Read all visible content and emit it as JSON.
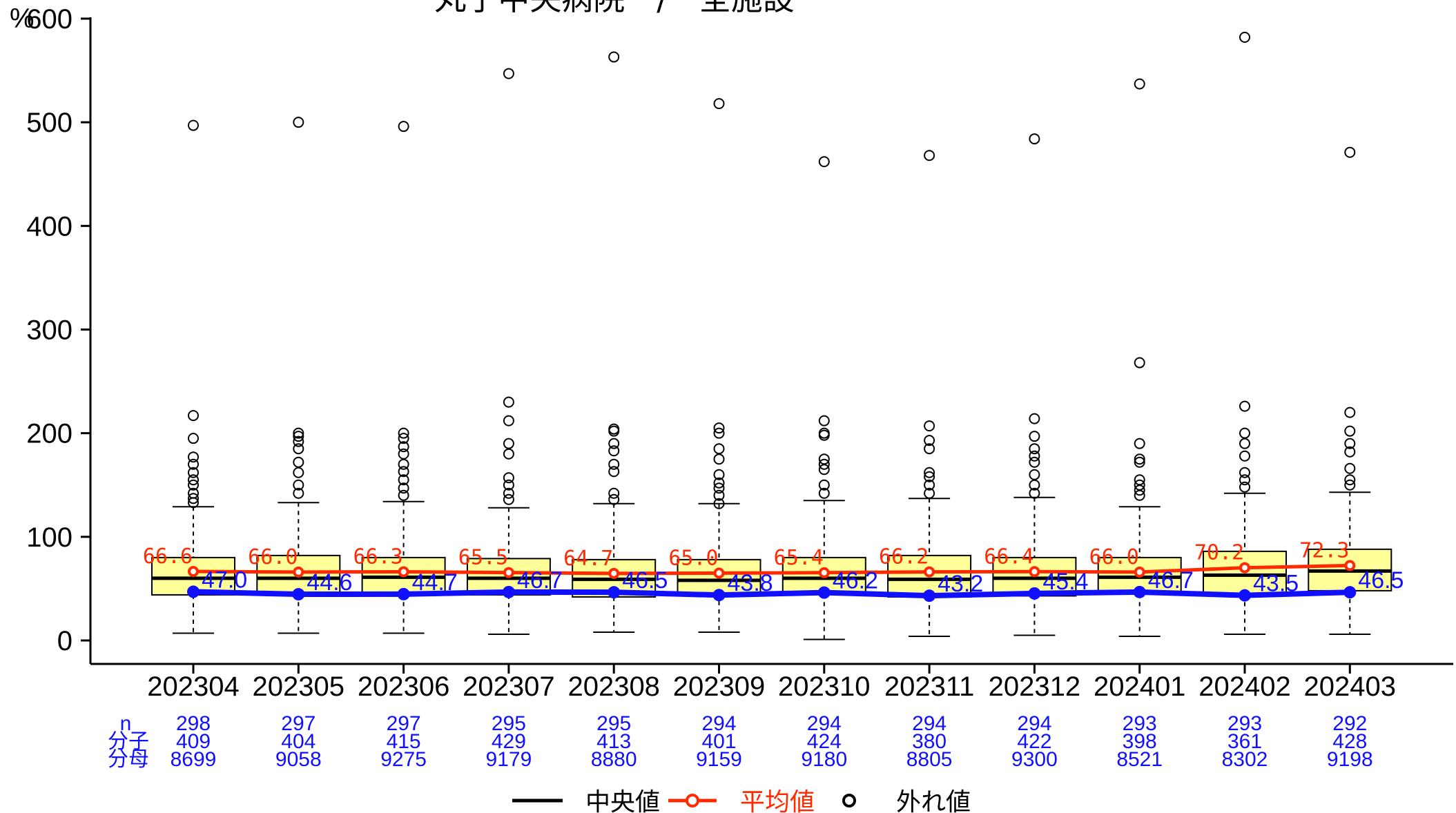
{
  "chart_data": {
    "type": "box",
    "title": "丸子中央病院　/　全施設",
    "y_unit_label": "%",
    "ylim": [
      0,
      600
    ],
    "y_ticks": [
      0,
      100,
      200,
      300,
      400,
      500,
      600
    ],
    "categories": [
      "202304",
      "202305",
      "202306",
      "202307",
      "202308",
      "202309",
      "202310",
      "202311",
      "202312",
      "202401",
      "202402",
      "202403"
    ],
    "boxes": [
      {
        "min": 7,
        "q1": 44,
        "median": 60,
        "q3": 80,
        "whisker_hi": 129,
        "outliers": [
          133,
          137,
          142,
          150,
          155,
          162,
          170,
          177,
          195,
          217,
          497
        ]
      },
      {
        "min": 7,
        "q1": 45,
        "median": 60,
        "q3": 82,
        "whisker_hi": 133,
        "outliers": [
          142,
          150,
          162,
          172,
          185,
          192,
          197,
          200,
          500
        ]
      },
      {
        "min": 7,
        "q1": 45,
        "median": 61,
        "q3": 80,
        "whisker_hi": 134,
        "outliers": [
          140,
          147,
          155,
          163,
          170,
          180,
          187,
          195,
          200,
          496
        ]
      },
      {
        "min": 6,
        "q1": 44,
        "median": 60,
        "q3": 79,
        "whisker_hi": 128,
        "outliers": [
          136,
          142,
          150,
          157,
          180,
          190,
          212,
          230,
          547
        ]
      },
      {
        "min": 8,
        "q1": 42,
        "median": 59,
        "q3": 78,
        "whisker_hi": 132,
        "outliers": [
          136,
          142,
          163,
          170,
          183,
          190,
          202,
          204,
          563
        ]
      },
      {
        "min": 8,
        "q1": 46,
        "median": 58,
        "q3": 78,
        "whisker_hi": 132,
        "outliers": [
          132,
          140,
          147,
          152,
          160,
          175,
          185,
          200,
          205,
          518
        ]
      },
      {
        "min": 1,
        "q1": 45,
        "median": 60,
        "q3": 80,
        "whisker_hi": 135,
        "outliers": [
          142,
          150,
          165,
          170,
          175,
          198,
          200,
          212,
          462
        ]
      },
      {
        "min": 4,
        "q1": 42,
        "median": 59,
        "q3": 82,
        "whisker_hi": 137,
        "outliers": [
          142,
          150,
          158,
          162,
          185,
          193,
          207,
          468
        ]
      },
      {
        "min": 5,
        "q1": 43,
        "median": 60,
        "q3": 80,
        "whisker_hi": 138,
        "outliers": [
          142,
          150,
          160,
          172,
          178,
          185,
          197,
          214,
          484
        ]
      },
      {
        "min": 4,
        "q1": 45,
        "median": 61,
        "q3": 80,
        "whisker_hi": 129,
        "outliers": [
          140,
          145,
          150,
          155,
          172,
          175,
          190,
          268,
          537
        ]
      },
      {
        "min": 6,
        "q1": 45,
        "median": 63,
        "q3": 86,
        "whisker_hi": 142,
        "outliers": [
          148,
          155,
          162,
          178,
          190,
          200,
          226,
          582
        ]
      },
      {
        "min": 6,
        "q1": 48,
        "median": 67,
        "q3": 88,
        "whisker_hi": 143,
        "outliers": [
          150,
          155,
          166,
          182,
          190,
          202,
          220,
          471
        ]
      }
    ],
    "mean": [
      66.6,
      66.0,
      66.3,
      65.5,
      64.7,
      65.0,
      65.4,
      66.2,
      66.4,
      66.0,
      70.2,
      72.3
    ],
    "mean_labels": [
      "66.6",
      "66.0",
      "66.3",
      "65.5",
      "64.7",
      "65.0",
      "65.4",
      "66.2",
      "66.4",
      "66.0",
      "70.2",
      "72.3"
    ],
    "patient_rate": [
      47.0,
      44.6,
      44.7,
      46.7,
      46.5,
      43.8,
      46.2,
      43.2,
      45.4,
      46.7,
      43.5,
      46.5
    ],
    "patient_rate_labels": [
      "47.0",
      "44.6",
      "44.7",
      "46.7",
      "46.5",
      "43.8",
      "46.2",
      "43.2",
      "45.4",
      "46.7",
      "43.5",
      "46.5"
    ],
    "table": {
      "row_labels": [
        "n",
        "分子",
        "分母"
      ],
      "n": [
        "298",
        "297",
        "297",
        "295",
        "295",
        "294",
        "294",
        "294",
        "294",
        "293",
        "293",
        "292"
      ],
      "num": [
        "409",
        "404",
        "415",
        "429",
        "413",
        "401",
        "424",
        "380",
        "422",
        "398",
        "361",
        "428"
      ],
      "den": [
        "8699",
        "9058",
        "9275",
        "9179",
        "8880",
        "9159",
        "9180",
        "8805",
        "9300",
        "8521",
        "8302",
        "9198"
      ]
    },
    "legend": [
      {
        "label": "中央値",
        "color": "#000000"
      },
      {
        "label": "平均値",
        "color": "#ff2a00"
      },
      {
        "label": "外れ値",
        "color": "#000000"
      }
    ],
    "colors": {
      "box_fill": "#ffff99",
      "mean": "#ff2a00",
      "patient": "#1010ff",
      "table_text": "#1010ff"
    }
  }
}
